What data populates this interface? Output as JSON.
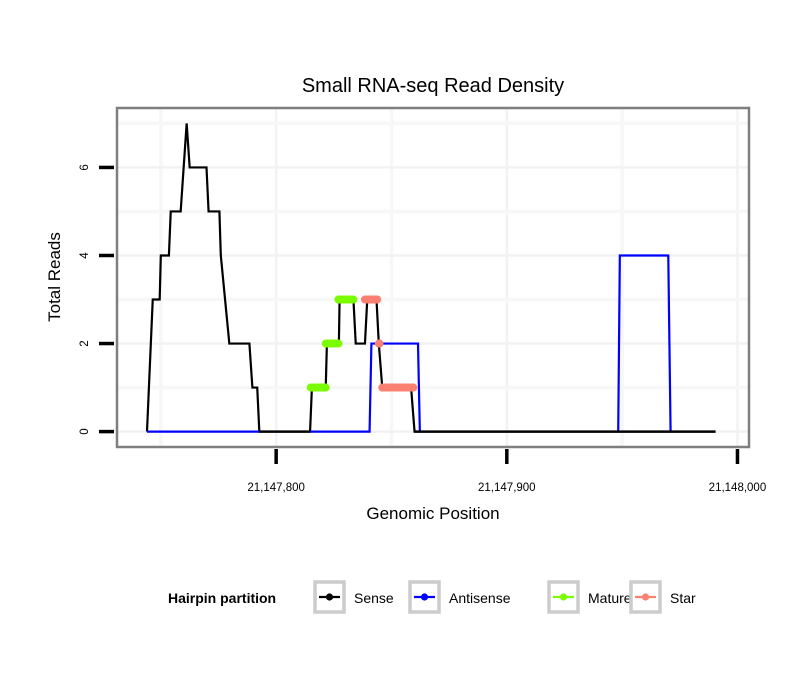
{
  "chart_data": {
    "type": "line",
    "title": "Small RNA-seq Read Density",
    "xlabel": "Genomic Position",
    "ylabel": "Total Reads",
    "xlim": [
      21147731,
      21148005
    ],
    "ylim": [
      -0.35,
      7.35
    ],
    "x_ticks": [
      21147800,
      21147900,
      21148000
    ],
    "x_tick_labels": [
      "21,147,800",
      "21,147,900",
      "21,148,000"
    ],
    "y_ticks": [
      0,
      2,
      4,
      6
    ],
    "y_tick_labels": [
      "0",
      "2",
      "4",
      "6"
    ],
    "grid": true,
    "legend": {
      "title": "Hairpin partition",
      "position": "bottom",
      "entries": [
        {
          "label": "Sense",
          "color": "#000000"
        },
        {
          "label": "Antisense",
          "color": "#0000ff"
        },
        {
          "label": "Mature",
          "color": "#7cfc00"
        },
        {
          "label": "Star",
          "color": "#fa8072"
        }
      ]
    },
    "series": [
      {
        "name": "Sense",
        "color": "#000000",
        "segments": [
          [
            [
              21147744,
              0
            ],
            [
              21147746.5,
              3
            ],
            [
              21147749.5,
              3
            ],
            [
              21147750,
              4
            ],
            [
              21147753.5,
              4
            ],
            [
              21147754.3,
              5
            ],
            [
              21147758.6,
              5
            ],
            [
              21147761.2,
              7
            ],
            [
              21147762.5,
              6
            ],
            [
              21147769.8,
              6
            ],
            [
              21147770.7,
              5
            ],
            [
              21147775.4,
              5
            ],
            [
              21147776,
              4
            ],
            [
              21147779.7,
              2
            ],
            [
              21147788.4,
              2
            ],
            [
              21147789.7,
              1
            ],
            [
              21147791.8,
              1
            ],
            [
              21147792.7,
              0
            ],
            [
              21147814.7,
              0
            ],
            [
              21147815.5,
              1
            ],
            [
              21147821.5,
              1
            ],
            [
              21147822,
              2
            ],
            [
              21147827.2,
              2
            ],
            [
              21147827.5,
              3
            ],
            [
              21147833.5,
              3
            ],
            [
              21147834.5,
              2
            ],
            [
              21147838.5,
              2
            ],
            [
              21147839.5,
              3
            ],
            [
              21147843.5,
              3
            ],
            [
              21147844.5,
              2
            ],
            [
              21147846,
              1
            ],
            [
              21147858.5,
              1
            ],
            [
              21147860,
              0
            ],
            [
              21147990.5,
              0
            ]
          ]
        ]
      },
      {
        "name": "Antisense",
        "color": "#0000ff",
        "segments": [
          [
            [
              21147744,
              0
            ],
            [
              21147792.7,
              0
            ]
          ],
          [
            [
              21147814.7,
              0
            ],
            [
              21147840.5,
              0
            ],
            [
              21147841.3,
              2
            ],
            [
              21147861.5,
              2
            ],
            [
              21147862.3,
              0
            ]
          ],
          [
            [
              21147948.3,
              0
            ],
            [
              21147949,
              4
            ],
            [
              21147970,
              4
            ],
            [
              21147971,
              0
            ]
          ]
        ]
      },
      {
        "name": "Mature",
        "color": "#7cfc00",
        "segments": [
          [
            [
              21147815,
              1
            ],
            [
              21147821.5,
              1
            ]
          ],
          [
            [
              21147821.5,
              2
            ],
            [
              21147827,
              2
            ]
          ],
          [
            [
              21147827,
              3
            ],
            [
              21147833.5,
              3
            ]
          ]
        ]
      },
      {
        "name": "Star",
        "color": "#fa8072",
        "segments": [
          [
            [
              21147838.5,
              3
            ],
            [
              21147843.8,
              3
            ]
          ],
          [
            [
              21147844.5,
              2
            ],
            [
              21147844.8,
              2
            ]
          ],
          [
            [
              21147846,
              1
            ],
            [
              21147859.5,
              1
            ]
          ]
        ]
      }
    ],
    "overlay_on_top": {
      "series": "Sense",
      "ranges": [
        [
          21147792.7,
          21147814.7
        ],
        [
          21147860,
          21147990.5
        ]
      ]
    }
  }
}
